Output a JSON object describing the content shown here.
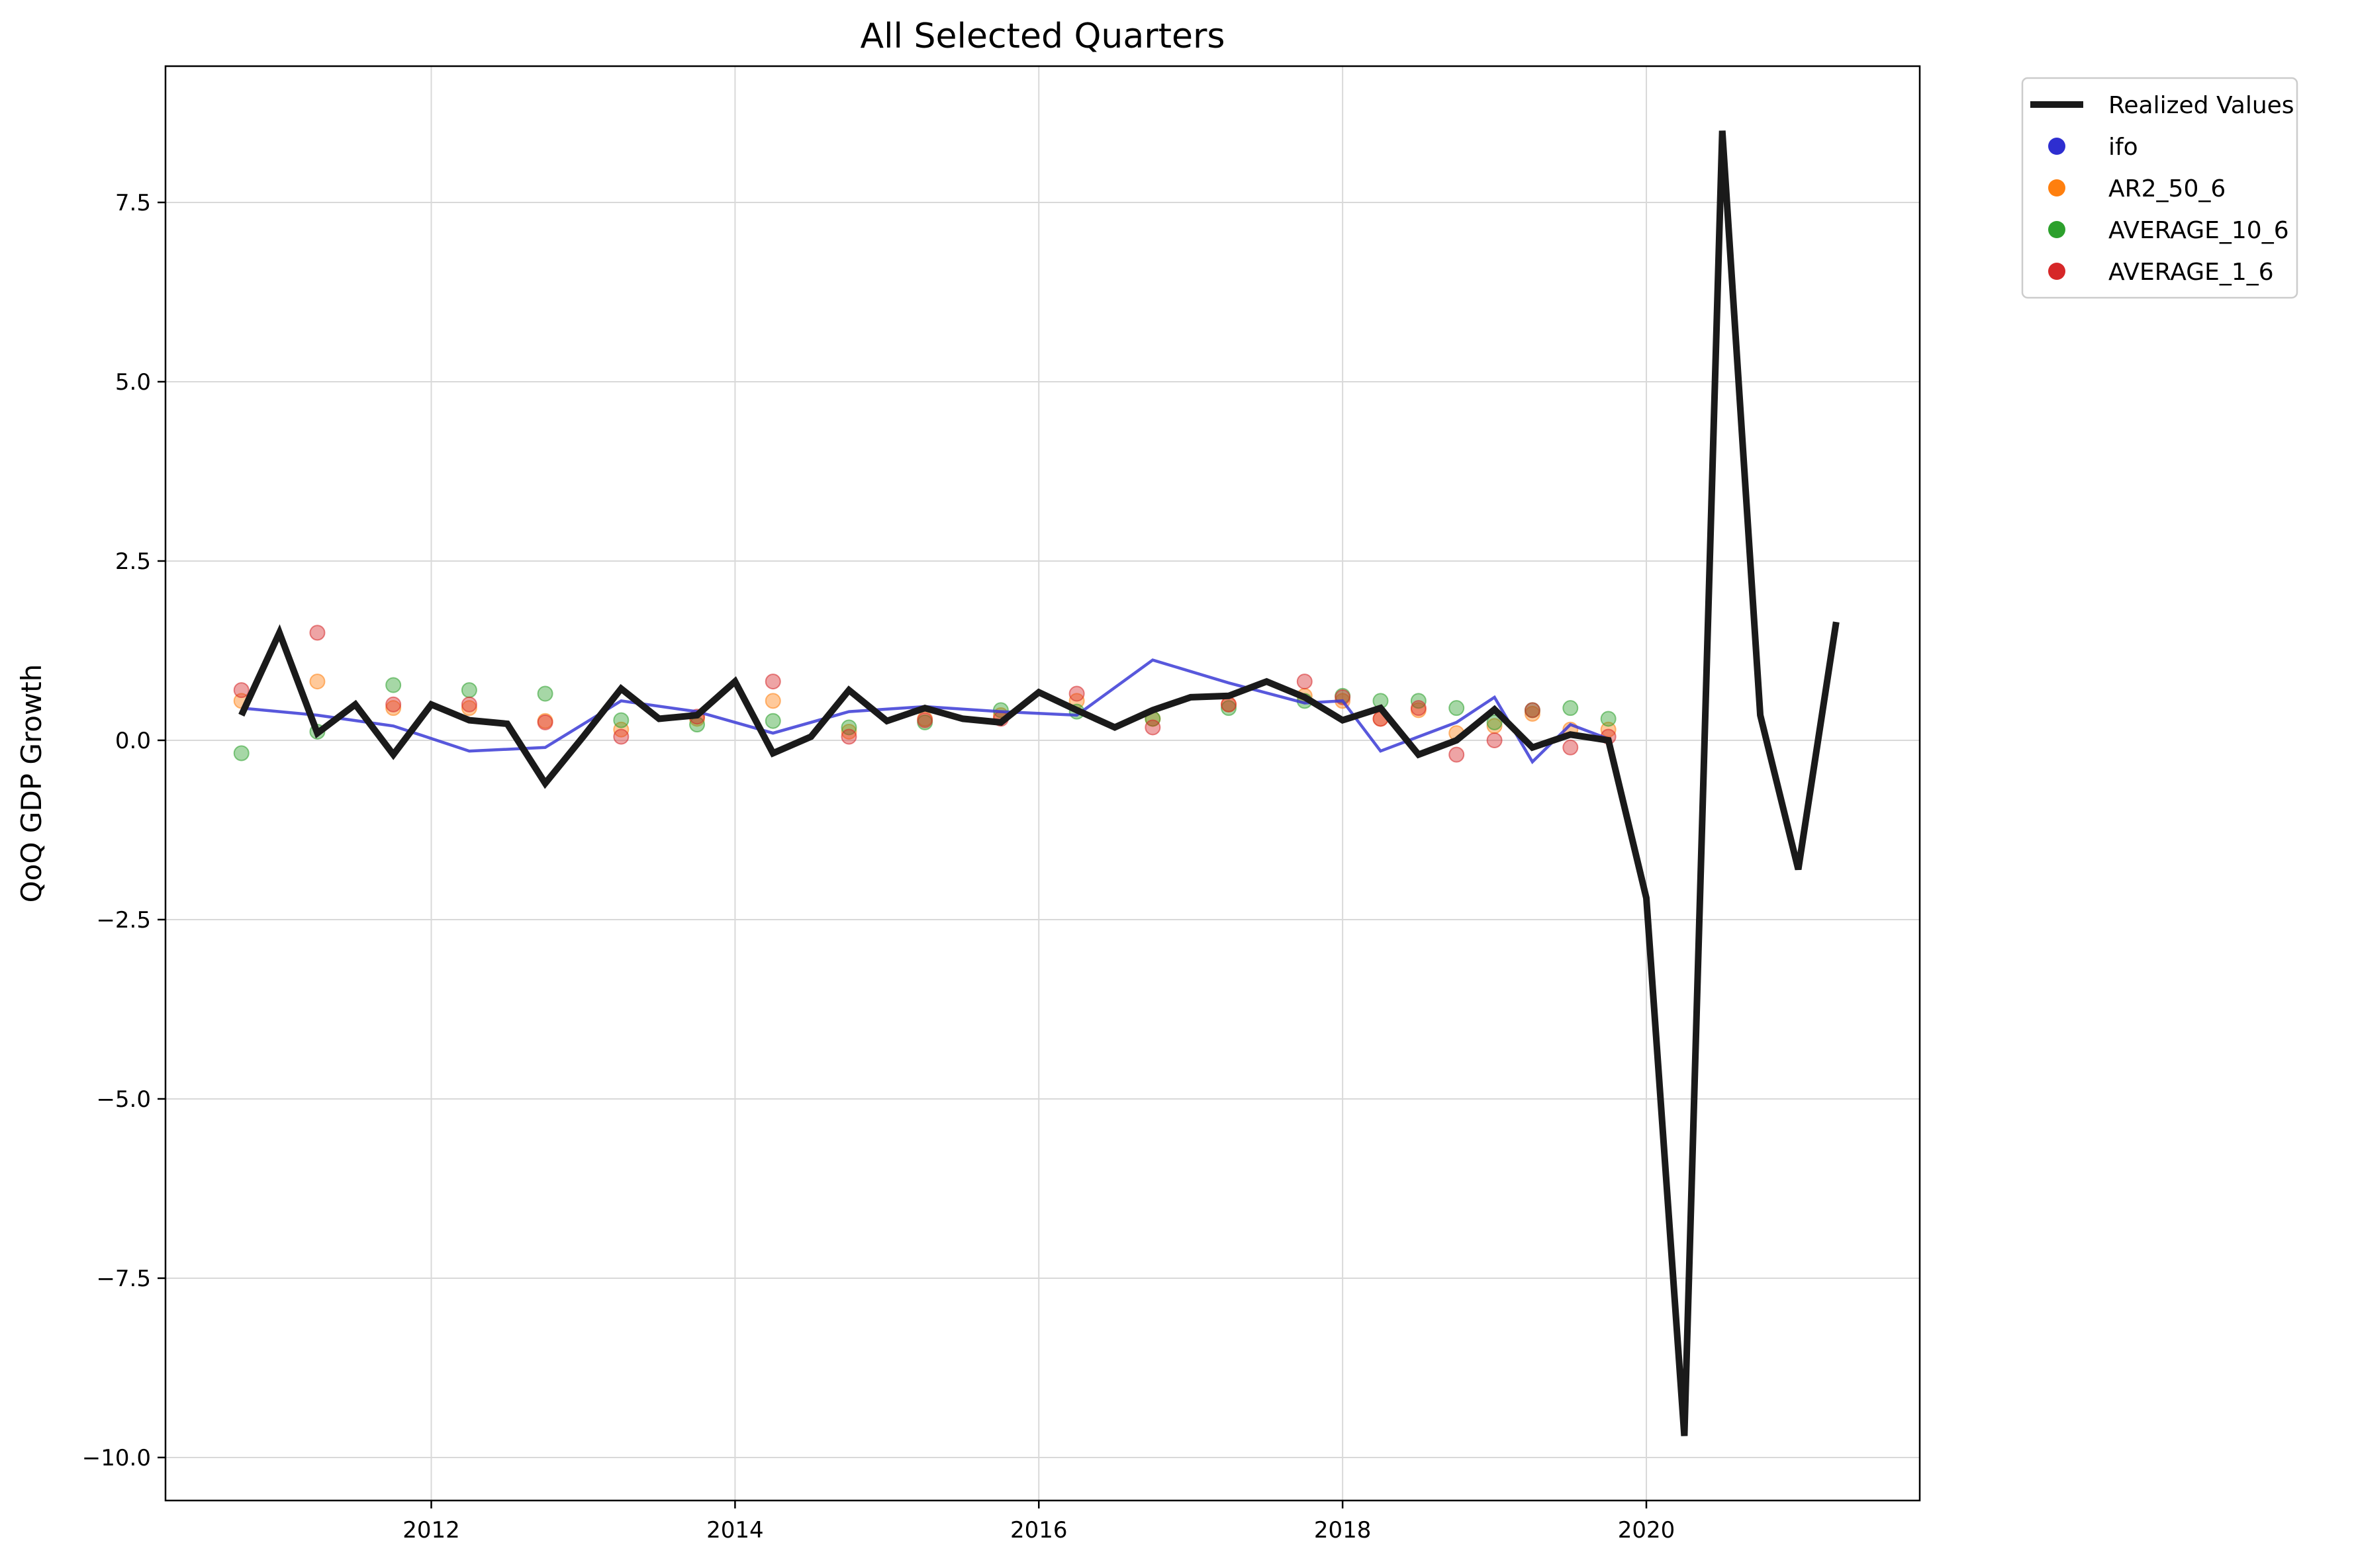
{
  "chart_data": {
    "type": "line",
    "title": "All Selected Quarters",
    "xlabel": "",
    "ylabel": "QoQ GDP Growth",
    "xlim": [
      2010.25,
      2021.8
    ],
    "ylim": [
      -10.6,
      9.4
    ],
    "x_ticks": [
      2012,
      2014,
      2016,
      2018,
      2020
    ],
    "x_tick_labels": [
      "2012",
      "2014",
      "2016",
      "2018",
      "2020"
    ],
    "y_ticks": [
      -10.0,
      -7.5,
      -5.0,
      -2.5,
      0.0,
      2.5,
      5.0,
      7.5
    ],
    "y_tick_labels": [
      "−10.0",
      "−7.5",
      "−5.0",
      "−2.5",
      "0.0",
      "2.5",
      "5.0",
      "7.5"
    ],
    "grid": true,
    "legend": {
      "placement": "outside-top-right",
      "entries": [
        "Realized Values",
        "ifo",
        "AR2_50_6",
        "AVERAGE_10_6",
        "AVERAGE_1_6"
      ]
    },
    "series": [
      {
        "name": "Realized Values",
        "kind": "line",
        "color": "#1a1a1a",
        "x": [
          2010.75,
          2011.0,
          2011.25,
          2011.5,
          2011.75,
          2012.0,
          2012.25,
          2012.5,
          2012.75,
          2013.0,
          2013.25,
          2013.5,
          2013.75,
          2014.0,
          2014.25,
          2014.5,
          2014.75,
          2015.0,
          2015.25,
          2015.5,
          2015.75,
          2016.0,
          2016.25,
          2016.5,
          2016.75,
          2017.0,
          2017.25,
          2017.5,
          2017.75,
          2018.0,
          2018.25,
          2018.5,
          2018.75,
          2019.0,
          2019.25,
          2019.5,
          2019.75,
          2020.0,
          2020.25,
          2020.5,
          2020.75,
          2021.0,
          2021.25
        ],
        "y": [
          0.35,
          1.5,
          0.1,
          0.5,
          -0.2,
          0.5,
          0.28,
          0.23,
          -0.6,
          0.05,
          0.72,
          0.3,
          0.35,
          0.82,
          -0.18,
          0.05,
          0.7,
          0.27,
          0.45,
          0.3,
          0.25,
          0.67,
          0.42,
          0.18,
          0.42,
          0.6,
          0.62,
          0.82,
          0.6,
          0.28,
          0.45,
          -0.2,
          0.0,
          0.43,
          -0.1,
          0.08,
          0.0,
          -2.2,
          -9.7,
          8.5,
          0.35,
          -1.8,
          1.65
        ]
      },
      {
        "name": "ifo",
        "kind": "line",
        "color": "#3b3bd6",
        "x": [
          2010.75,
          2011.25,
          2011.75,
          2012.25,
          2012.75,
          2013.25,
          2013.75,
          2014.25,
          2014.75,
          2015.25,
          2015.75,
          2016.25,
          2016.75,
          2017.25,
          2017.75,
          2018.0,
          2018.25,
          2018.5,
          2018.75,
          2019.0,
          2019.25,
          2019.5,
          2019.75
        ],
        "y": [
          0.45,
          0.35,
          0.2,
          -0.15,
          -0.1,
          0.55,
          0.4,
          0.1,
          0.4,
          0.47,
          0.4,
          0.35,
          1.12,
          0.8,
          0.52,
          0.55,
          -0.15,
          0.05,
          0.25,
          0.6,
          -0.3,
          0.22,
          0.02
        ]
      },
      {
        "name": "AR2_50_6",
        "kind": "scatter",
        "color": "#ff7f0e",
        "x": [
          2010.75,
          2011.25,
          2011.75,
          2012.25,
          2012.75,
          2013.25,
          2013.75,
          2014.25,
          2014.75,
          2015.25,
          2015.75,
          2016.25,
          2016.75,
          2017.25,
          2017.75,
          2018.0,
          2018.25,
          2018.5,
          2018.75,
          2019.0,
          2019.25,
          2019.5,
          2019.75
        ],
        "y": [
          0.55,
          0.82,
          0.45,
          0.45,
          0.27,
          0.15,
          0.3,
          0.55,
          0.12,
          0.3,
          0.35,
          0.55,
          0.3,
          0.5,
          0.62,
          0.55,
          0.3,
          0.42,
          0.1,
          0.2,
          0.37,
          0.15,
          0.15
        ]
      },
      {
        "name": "AVERAGE_10_6",
        "kind": "scatter",
        "color": "#2ca02c",
        "x": [
          2010.75,
          2011.25,
          2011.75,
          2012.25,
          2012.75,
          2013.25,
          2013.75,
          2014.25,
          2014.75,
          2015.25,
          2015.75,
          2016.25,
          2016.75,
          2017.25,
          2017.75,
          2018.0,
          2018.25,
          2018.5,
          2018.75,
          2019.0,
          2019.25,
          2019.5,
          2019.75
        ],
        "y": [
          -0.18,
          0.12,
          0.77,
          0.7,
          0.65,
          0.28,
          0.22,
          0.27,
          0.18,
          0.25,
          0.42,
          0.4,
          0.3,
          0.45,
          0.55,
          0.62,
          0.55,
          0.55,
          0.45,
          0.25,
          0.42,
          0.45,
          0.3
        ]
      },
      {
        "name": "AVERAGE_1_6",
        "kind": "scatter",
        "color": "#d62728",
        "x": [
          2010.75,
          2011.25,
          2011.75,
          2012.25,
          2012.75,
          2013.25,
          2013.75,
          2014.25,
          2014.75,
          2015.25,
          2015.75,
          2016.25,
          2016.75,
          2017.25,
          2017.75,
          2018.0,
          2018.25,
          2018.5,
          2018.75,
          2019.0,
          2019.25,
          2019.5,
          2019.75
        ],
        "y": [
          0.7,
          1.5,
          0.5,
          0.5,
          0.25,
          0.05,
          0.33,
          0.82,
          0.05,
          0.28,
          0.3,
          0.65,
          0.18,
          0.5,
          0.82,
          0.6,
          0.3,
          0.45,
          -0.2,
          0.0,
          0.42,
          -0.1,
          0.05
        ]
      }
    ]
  }
}
